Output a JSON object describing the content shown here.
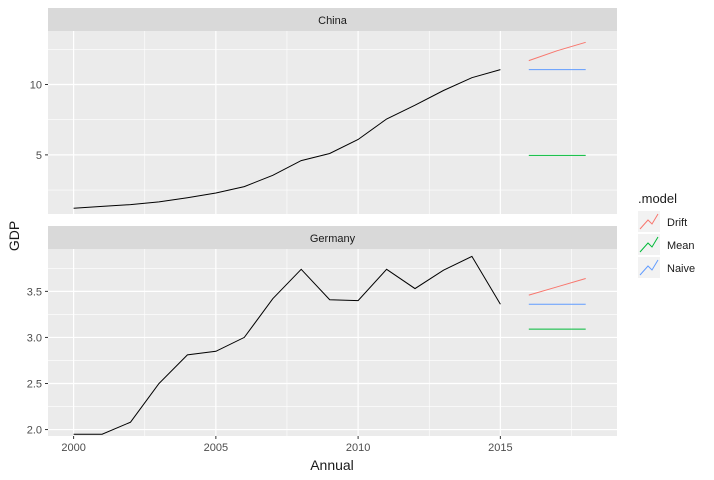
{
  "chart_data": {
    "type": "line",
    "xlabel": "Annual",
    "ylabel": "GDP",
    "x_ticks": [
      2000,
      2005,
      2010,
      2015
    ],
    "xlim": [
      1999.1,
      2019.1
    ],
    "grid": true,
    "legend": {
      "title": ".model",
      "placement": "right",
      "entries": [
        {
          "label": "Drift",
          "color": "#F8766D"
        },
        {
          "label": "Mean",
          "color": "#00BA38"
        },
        {
          "label": "Naive",
          "color": "#619CFF"
        }
      ]
    },
    "panels": [
      {
        "strip": "China",
        "ylim": [
          0.8,
          13.8
        ],
        "y_ticks": [
          5,
          10
        ],
        "y_tick_labels": [
          "5",
          "10"
        ],
        "history": {
          "x": [
            2000,
            2001,
            2002,
            2003,
            2004,
            2005,
            2006,
            2007,
            2008,
            2009,
            2010,
            2011,
            2012,
            2013,
            2014,
            2015
          ],
          "y": [
            1.21,
            1.34,
            1.47,
            1.66,
            1.96,
            2.29,
            2.75,
            3.55,
            4.59,
            5.1,
            6.09,
            7.55,
            8.53,
            9.57,
            10.48,
            11.06
          ]
        },
        "forecasts": [
          {
            "model": "Drift",
            "x": [
              2016,
              2017,
              2018
            ],
            "y": [
              11.7,
              12.4,
              13.0
            ]
          },
          {
            "model": "Naive",
            "x": [
              2016,
              2017,
              2018
            ],
            "y": [
              11.06,
              11.06,
              11.06
            ]
          },
          {
            "model": "Mean",
            "x": [
              2016,
              2017,
              2018
            ],
            "y": [
              4.96,
              4.96,
              4.96
            ]
          }
        ]
      },
      {
        "strip": "Germany",
        "ylim": [
          1.93,
          3.96
        ],
        "y_ticks": [
          2.0,
          2.5,
          3.0,
          3.5
        ],
        "y_tick_labels": [
          "2.0",
          "2.5",
          "3.0",
          "3.5"
        ],
        "history": {
          "x": [
            2000,
            2001,
            2002,
            2003,
            2004,
            2005,
            2006,
            2007,
            2008,
            2009,
            2010,
            2011,
            2012,
            2013,
            2014,
            2015
          ],
          "y": [
            1.95,
            1.95,
            2.08,
            2.5,
            2.81,
            2.85,
            3.0,
            3.42,
            3.74,
            3.41,
            3.4,
            3.74,
            3.53,
            3.73,
            3.88,
            3.36
          ]
        },
        "forecasts": [
          {
            "model": "Drift",
            "x": [
              2016,
              2017,
              2018
            ],
            "y": [
              3.46,
              3.55,
              3.64
            ]
          },
          {
            "model": "Naive",
            "x": [
              2016,
              2017,
              2018
            ],
            "y": [
              3.36,
              3.36,
              3.36
            ]
          },
          {
            "model": "Mean",
            "x": [
              2016,
              2017,
              2018
            ],
            "y": [
              3.09,
              3.09,
              3.09
            ]
          }
        ]
      }
    ]
  }
}
